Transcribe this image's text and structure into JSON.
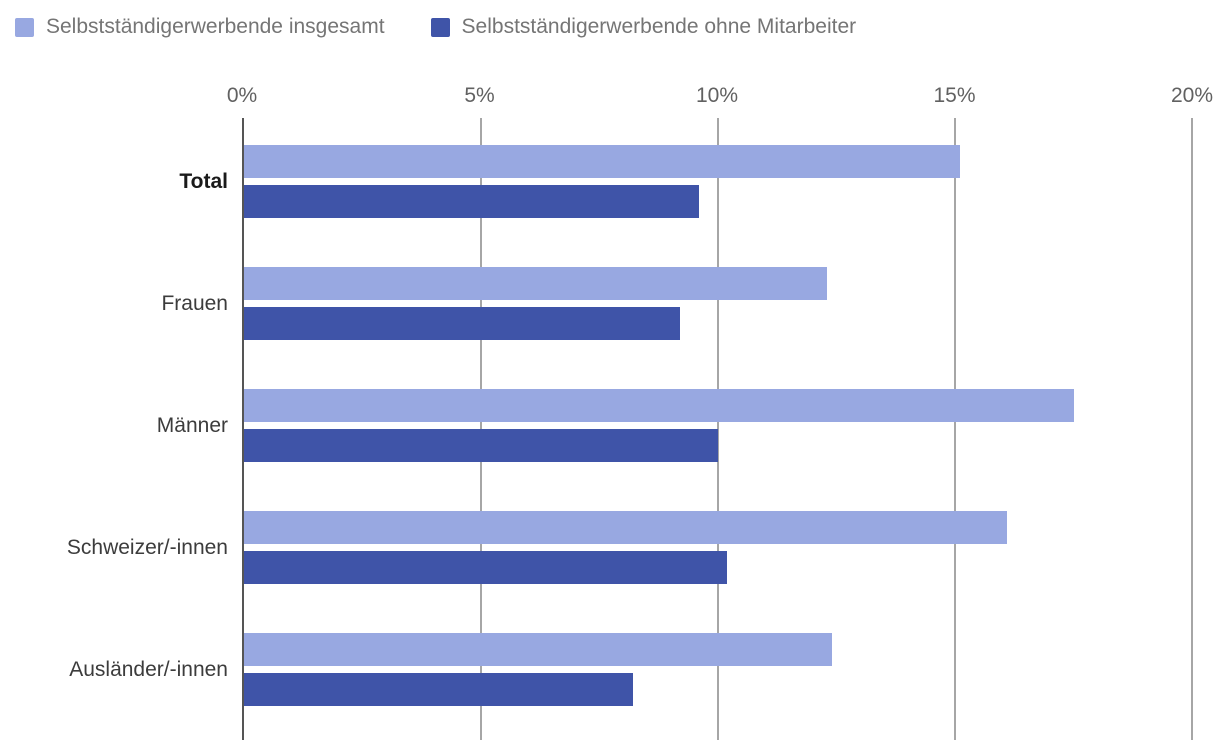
{
  "legend": [
    {
      "label": "Selbstständigerwerbende insgesamt",
      "color": "#98a8e1"
    },
    {
      "label": "Selbstständigerwerbende ohne Mitarbeiter",
      "color": "#3f54a8"
    }
  ],
  "chart_data": {
    "type": "bar",
    "orientation": "horizontal",
    "title": "",
    "xlabel": "",
    "ylabel": "",
    "categories": [
      "Total",
      "Frauen",
      "Männer",
      "Schweizer/-innen",
      "Ausländer/-innen"
    ],
    "bold_categories": [
      "Total"
    ],
    "series": [
      {
        "name": "Selbstständigerwerbende insgesamt",
        "color": "#98a8e1",
        "values": [
          15.1,
          12.3,
          17.5,
          16.1,
          12.4
        ]
      },
      {
        "name": "Selbstständigerwerbende ohne Mitarbeiter",
        "color": "#3f54a8",
        "values": [
          9.6,
          9.2,
          10.0,
          10.2,
          8.2
        ]
      }
    ],
    "x_ticks": [
      "0%",
      "5%",
      "10%",
      "15%",
      "20%"
    ],
    "xlim": [
      0,
      20
    ],
    "grid": true,
    "legend_position": "top-left"
  }
}
